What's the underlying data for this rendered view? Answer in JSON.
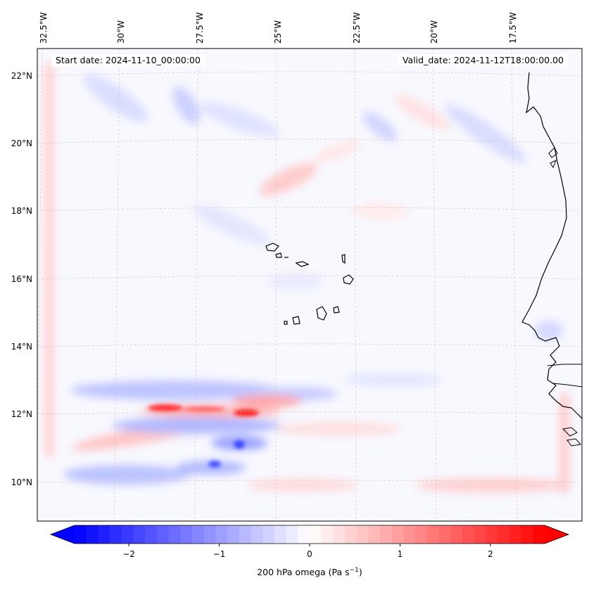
{
  "header": {
    "start_date": "Start date: 2024-11-10_00:00:00",
    "valid_date": "Valid_date: 2024-11-12T18:00:00.00"
  },
  "lon_labels": [
    "32.5°W",
    "30°W",
    "27.5°W",
    "25°W",
    "22.5°W",
    "20°W",
    "17.5°W"
  ],
  "lat_labels": [
    "22°N",
    "20°N",
    "18°N",
    "16°N",
    "14°N",
    "12°N",
    "10°N"
  ],
  "colorbar": {
    "label": "200 hPa omega (Pa s",
    "label_sup": "−1",
    "label_end": ")",
    "ticks": [
      "−2",
      "−1",
      "0",
      "1",
      "2"
    ],
    "tick_values": [
      -2,
      -1,
      0,
      1,
      2
    ],
    "min": -2.6,
    "max": 2.6,
    "levels": 40,
    "low_color": "#0000ff",
    "mid_color": "#ffffff",
    "high_color": "#ff0000"
  },
  "colors": {
    "coastline": "#000000",
    "gridline": "#d9b8a8"
  }
}
